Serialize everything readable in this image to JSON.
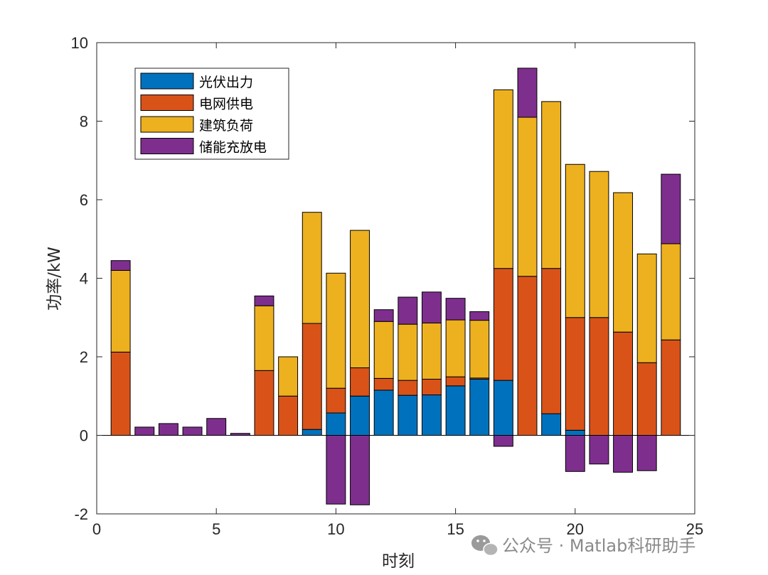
{
  "chart_data": {
    "type": "bar",
    "stacked": true,
    "xlabel": "时刻",
    "ylabel": "功率/kW",
    "xlim": [
      0,
      25
    ],
    "ylim": [
      -2,
      10
    ],
    "xticks": [
      0,
      5,
      10,
      15,
      20,
      25
    ],
    "yticks": [
      -2,
      0,
      2,
      4,
      6,
      8,
      10
    ],
    "legend_position": "top-left",
    "categories": [
      1,
      2,
      3,
      4,
      5,
      6,
      7,
      8,
      9,
      10,
      11,
      12,
      13,
      14,
      15,
      16,
      17,
      18,
      19,
      20,
      21,
      22,
      23,
      24
    ],
    "series": [
      {
        "name": "光伏出力",
        "color": "#0072BD",
        "values": [
          0,
          0,
          0,
          0,
          0,
          0,
          0,
          0,
          0.15,
          0.57,
          1.0,
          1.15,
          1.02,
          1.03,
          1.26,
          1.43,
          1.4,
          0,
          0.55,
          0.13,
          0,
          0,
          0,
          0
        ]
      },
      {
        "name": "电网供电",
        "color": "#D95319",
        "values": [
          2.12,
          0,
          0,
          0,
          0,
          0,
          1.65,
          1.0,
          2.7,
          0.63,
          0.72,
          0.3,
          0.38,
          0.4,
          0.23,
          0.03,
          2.85,
          4.05,
          3.7,
          2.87,
          3.0,
          2.63,
          1.85,
          2.43
        ]
      },
      {
        "name": "建筑负荷",
        "color": "#EDB120",
        "values": [
          2.08,
          0,
          0,
          0,
          0,
          0,
          1.65,
          1.0,
          2.83,
          2.93,
          3.5,
          1.45,
          1.43,
          1.43,
          1.45,
          1.47,
          4.55,
          4.05,
          4.25,
          3.9,
          3.72,
          3.55,
          2.77,
          2.45
        ]
      },
      {
        "name": "储能充放电",
        "color": "#7E2F8E",
        "values": [
          0.25,
          0.21,
          0.3,
          0.21,
          0.43,
          0.05,
          0.25,
          0,
          0,
          -1.75,
          -1.77,
          0.3,
          0.69,
          0.79,
          0.55,
          0.22,
          -0.28,
          1.25,
          0,
          -0.92,
          -0.73,
          -0.94,
          -0.9,
          1.77
        ]
      }
    ]
  },
  "watermark": "公众号 · Matlab科研助手"
}
